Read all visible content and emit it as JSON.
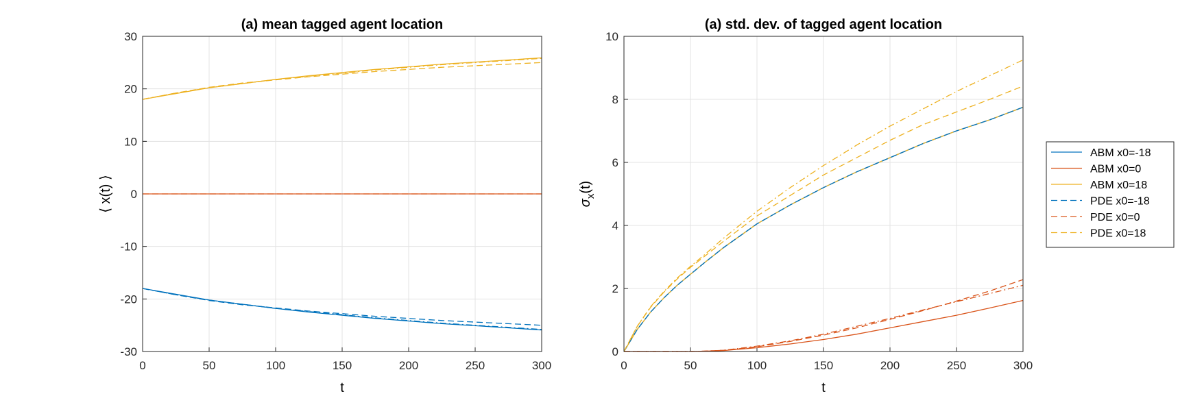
{
  "chart_data": [
    {
      "type": "line",
      "title": "(a) mean tagged agent location",
      "xlabel": "t",
      "ylabel": "⟨ x(t) ⟩",
      "xlim": [
        0,
        300
      ],
      "ylim": [
        -30,
        30
      ],
      "xticks": [
        0,
        50,
        100,
        150,
        200,
        250,
        300
      ],
      "yticks": [
        -30,
        -20,
        -10,
        0,
        10,
        20,
        30
      ],
      "grid": true,
      "x": [
        0,
        25,
        50,
        75,
        100,
        125,
        150,
        175,
        200,
        225,
        250,
        275,
        300
      ],
      "series": [
        {
          "name": "ABM x0=-18",
          "color": "#0072BD",
          "dash": "solid",
          "values": [
            -18,
            -19.1,
            -20.2,
            -21.0,
            -21.8,
            -22.5,
            -23.1,
            -23.7,
            -24.2,
            -24.7,
            -25.1,
            -25.5,
            -25.9
          ]
        },
        {
          "name": "ABM x0=0",
          "color": "#D95319",
          "dash": "solid",
          "values": [
            0,
            0,
            0,
            0,
            0,
            0,
            0,
            0,
            0,
            0,
            0,
            0,
            0
          ]
        },
        {
          "name": "ABM x0=18",
          "color": "#EDB120",
          "dash": "solid",
          "values": [
            18,
            19.1,
            20.2,
            21.0,
            21.8,
            22.5,
            23.1,
            23.7,
            24.2,
            24.7,
            25.1,
            25.5,
            25.9
          ]
        },
        {
          "name": "PDE x0=-18",
          "color": "#0072BD",
          "dash": "dash",
          "values": [
            -18,
            -19.2,
            -20.3,
            -21.1,
            -21.7,
            -22.3,
            -22.8,
            -23.3,
            -23.7,
            -24.1,
            -24.4,
            -24.7,
            -25.0
          ]
        },
        {
          "name": "PDE x0=0",
          "color": "#D95319",
          "dash": "dash",
          "values": [
            0,
            0,
            0,
            0,
            0,
            0,
            0,
            0,
            0,
            0,
            0,
            0,
            0
          ]
        },
        {
          "name": "PDE x0=18",
          "color": "#EDB120",
          "dash": "dash",
          "values": [
            18,
            19.2,
            20.3,
            21.1,
            21.7,
            22.3,
            22.8,
            23.3,
            23.7,
            24.1,
            24.4,
            24.7,
            25.0
          ]
        },
        {
          "color": "#0072BD",
          "dash": "dashdot",
          "values": [
            -18,
            -19.2,
            -20.2,
            -21.0,
            -21.8,
            -22.4,
            -23.0,
            -23.6,
            -24.1,
            -24.6,
            -25.0,
            -25.4,
            -25.8
          ]
        },
        {
          "color": "#EDB120",
          "dash": "dashdot",
          "values": [
            18,
            19.2,
            20.2,
            21.0,
            21.8,
            22.4,
            23.0,
            23.6,
            24.1,
            24.6,
            25.0,
            25.4,
            25.8
          ]
        }
      ]
    },
    {
      "type": "line",
      "title": "(a) std. dev. of tagged agent location",
      "xlabel": "t",
      "ylabel": "σ",
      "ylabel_sub": "x",
      "ylabel_tail": "(t)",
      "xlim": [
        0,
        300
      ],
      "ylim": [
        0,
        10
      ],
      "xticks": [
        0,
        50,
        100,
        150,
        200,
        250,
        300
      ],
      "yticks": [
        0,
        2,
        4,
        6,
        8,
        10
      ],
      "grid": true,
      "x": [
        0,
        5,
        10,
        20,
        30,
        40,
        50,
        60,
        75,
        100,
        125,
        150,
        175,
        200,
        225,
        250,
        275,
        300
      ],
      "series": [
        {
          "name": "ABM x0=-18",
          "color": "#0072BD",
          "dash": "solid",
          "values": [
            0,
            0.35,
            0.7,
            1.25,
            1.7,
            2.1,
            2.45,
            2.8,
            3.3,
            4.05,
            4.65,
            5.2,
            5.7,
            6.15,
            6.6,
            7.0,
            7.35,
            7.75
          ]
        },
        {
          "name": "ABM x0=0",
          "color": "#D95319",
          "dash": "solid",
          "values": [
            0,
            0,
            0,
            0,
            0,
            0,
            0,
            0.01,
            0.03,
            0.12,
            0.24,
            0.38,
            0.55,
            0.75,
            0.95,
            1.15,
            1.38,
            1.62
          ]
        },
        {
          "name": "ABM x0=18",
          "color": "#EDB120",
          "dash": "solid",
          "values": [
            0,
            0.35,
            0.7,
            1.25,
            1.7,
            2.1,
            2.45,
            2.8,
            3.3,
            4.05,
            4.65,
            5.2,
            5.7,
            6.15,
            6.6,
            7.0,
            7.35,
            7.75
          ]
        },
        {
          "name": "PDE x0=-18",
          "color": "#0072BD",
          "dash": "dash",
          "values": [
            0,
            0.35,
            0.7,
            1.25,
            1.7,
            2.1,
            2.45,
            2.8,
            3.3,
            4.05,
            4.65,
            5.2,
            5.7,
            6.15,
            6.6,
            7.0,
            7.35,
            7.75
          ]
        },
        {
          "name": "PDE x0=0",
          "color": "#D95319",
          "dash": "dash",
          "values": [
            0,
            0,
            0,
            0,
            0,
            0,
            0,
            0.01,
            0.04,
            0.15,
            0.32,
            0.52,
            0.75,
            1.02,
            1.3,
            1.6,
            1.92,
            2.28
          ]
        },
        {
          "name": "PDE x0=18",
          "color": "#EDB120",
          "dash": "dash",
          "values": [
            0,
            0.4,
            0.8,
            1.4,
            1.88,
            2.3,
            2.67,
            3.0,
            3.5,
            4.3,
            4.95,
            5.6,
            6.15,
            6.7,
            7.2,
            7.6,
            8.0,
            8.42
          ]
        },
        {
          "color": "#D95319",
          "dash": "dashdot",
          "values": [
            0,
            0,
            0,
            0,
            0,
            0,
            0,
            0.01,
            0.04,
            0.17,
            0.34,
            0.55,
            0.8,
            1.05,
            1.32,
            1.58,
            1.84,
            2.1
          ]
        },
        {
          "color": "#EDB120",
          "dash": "dashdot",
          "values": [
            0,
            0.4,
            0.8,
            1.42,
            1.9,
            2.33,
            2.7,
            3.05,
            3.6,
            4.45,
            5.2,
            5.9,
            6.55,
            7.15,
            7.7,
            8.25,
            8.75,
            9.25
          ]
        }
      ]
    }
  ],
  "legend": {
    "placement": "right, outside",
    "entries": [
      {
        "label": "ABM x0=-18",
        "color": "#0072BD",
        "dash": "solid"
      },
      {
        "label": "ABM x0=0",
        "color": "#D95319",
        "dash": "solid"
      },
      {
        "label": "ABM x0=18",
        "color": "#EDB120",
        "dash": "solid"
      },
      {
        "label": "PDE x0=-18",
        "color": "#0072BD",
        "dash": "dash"
      },
      {
        "label": "PDE x0=0",
        "color": "#D95319",
        "dash": "dash"
      },
      {
        "label": "PDE x0=18",
        "color": "#EDB120",
        "dash": "dash"
      }
    ]
  }
}
